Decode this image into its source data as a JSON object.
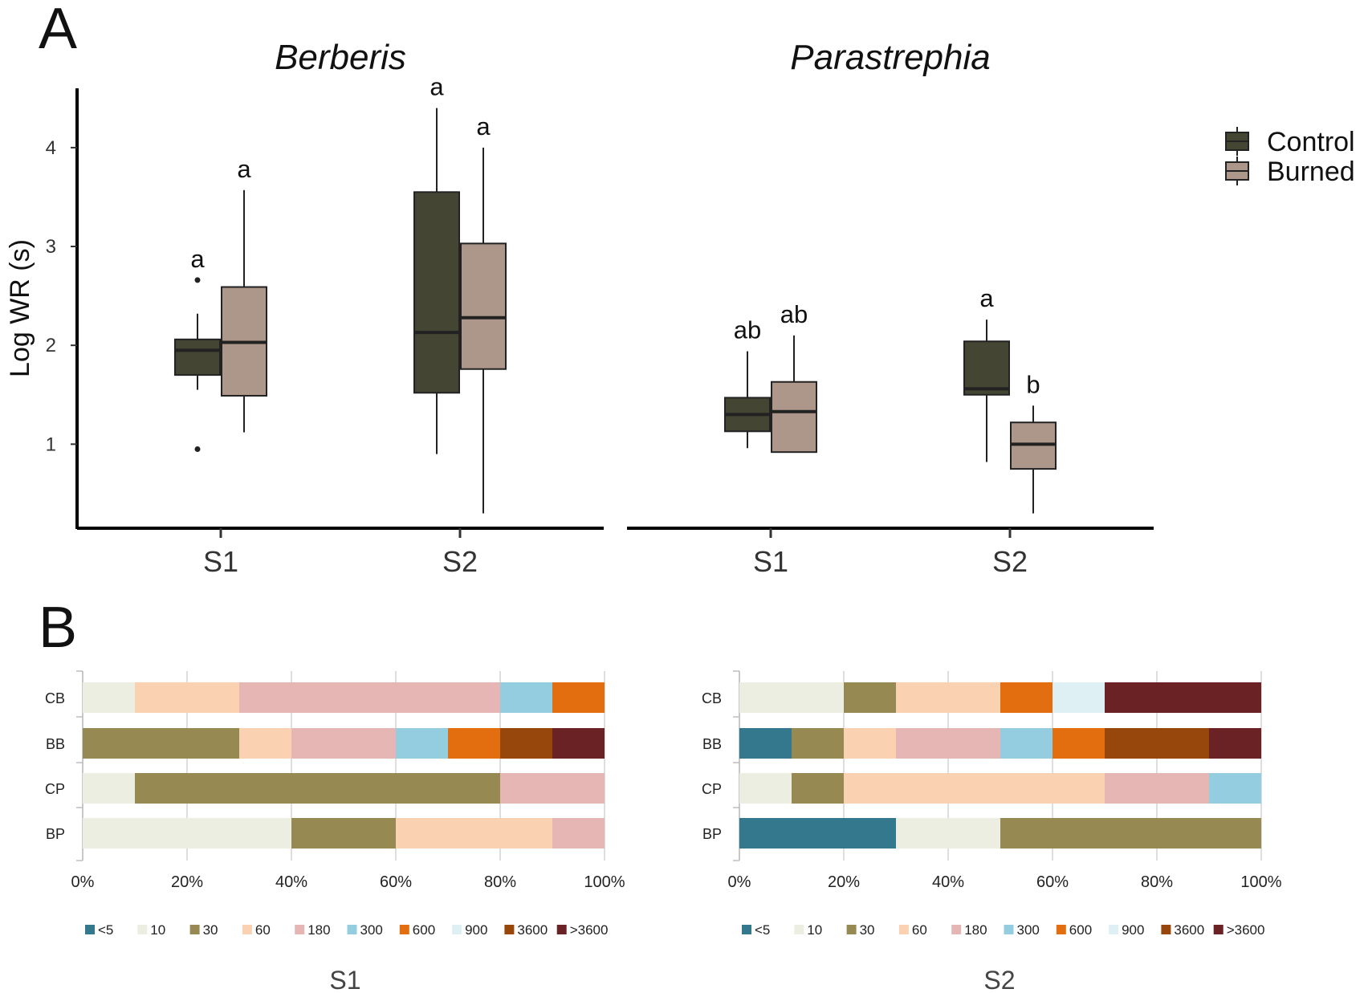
{
  "panel_labels": {
    "a": "A",
    "b": "B"
  },
  "colors": {
    "control": "#454534",
    "burned": "#ac978a",
    "bins": [
      "#33788d",
      "#ebeee0",
      "#968a52",
      "#fbd2b1",
      "#e6b6b5",
      "#94cddf",
      "#e36e10",
      "#dff0f4",
      "#98470c",
      "#6a2224"
    ]
  },
  "chart_data": [
    {
      "type": "boxplot",
      "facets": [
        "Berberis",
        "Parastrephia"
      ],
      "ylabel": "Log WR (s)",
      "yticks": [
        "1",
        "2",
        "3",
        "4"
      ],
      "ylim": [
        0.15,
        4.6
      ],
      "categories": [
        "S1",
        "S2"
      ],
      "legend": [
        "Control",
        "Burned"
      ],
      "boxes": [
        {
          "facet": 0,
          "cat": 0,
          "group": 0,
          "min": 1.55,
          "q1": 1.7,
          "med": 1.95,
          "q3": 2.06,
          "max": 2.32,
          "outliers": [
            2.66,
            0.95
          ],
          "sig": "a"
        },
        {
          "facet": 0,
          "cat": 0,
          "group": 1,
          "min": 1.12,
          "q1": 1.49,
          "med": 2.03,
          "q3": 2.59,
          "max": 3.57,
          "outliers": [],
          "sig": "a"
        },
        {
          "facet": 0,
          "cat": 1,
          "group": 0,
          "min": 0.9,
          "q1": 1.52,
          "med": 2.13,
          "q3": 3.55,
          "max": 4.4,
          "outliers": [],
          "sig": "a"
        },
        {
          "facet": 0,
          "cat": 1,
          "group": 1,
          "min": 0.3,
          "q1": 1.76,
          "med": 2.28,
          "q3": 3.03,
          "max": 4.0,
          "outliers": [],
          "sig": "a"
        },
        {
          "facet": 1,
          "cat": 0,
          "group": 0,
          "min": 0.96,
          "q1": 1.13,
          "med": 1.3,
          "q3": 1.47,
          "max": 1.94,
          "outliers": [],
          "sig": "ab"
        },
        {
          "facet": 1,
          "cat": 0,
          "group": 1,
          "min": 0.92,
          "q1": 0.92,
          "med": 1.33,
          "q3": 1.63,
          "max": 2.1,
          "outliers": [],
          "sig": "ab"
        },
        {
          "facet": 1,
          "cat": 1,
          "group": 0,
          "min": 0.82,
          "q1": 1.5,
          "med": 1.56,
          "q3": 2.04,
          "max": 2.26,
          "outliers": [],
          "sig": "a"
        },
        {
          "facet": 1,
          "cat": 1,
          "group": 1,
          "min": 0.3,
          "q1": 0.75,
          "med": 1.0,
          "q3": 1.22,
          "max": 1.39,
          "outliers": [],
          "sig": "b"
        }
      ]
    },
    {
      "type": "stacked-bar-100",
      "title": "S1",
      "categories": [
        "CB",
        "BB",
        "CP",
        "BP"
      ],
      "legend": [
        "<5",
        "10",
        "30",
        "60",
        "180",
        "300",
        "600",
        "900",
        "3600",
        ">3600"
      ],
      "xticks": [
        "0%",
        "20%",
        "40%",
        "60%",
        "80%",
        "100%"
      ],
      "percent": [
        [
          0,
          10,
          0,
          20,
          50,
          10,
          10,
          0,
          0,
          0
        ],
        [
          0,
          0,
          30,
          10,
          20,
          10,
          10,
          0,
          10,
          10
        ],
        [
          0,
          10,
          70,
          0,
          20,
          0,
          0,
          0,
          0,
          0
        ],
        [
          0,
          40,
          20,
          30,
          10,
          0,
          0,
          0,
          0,
          0
        ]
      ]
    },
    {
      "type": "stacked-bar-100",
      "title": "S2",
      "categories": [
        "CB",
        "BB",
        "CP",
        "BP"
      ],
      "legend": [
        "<5",
        "10",
        "30",
        "60",
        "180",
        "300",
        "600",
        "900",
        "3600",
        ">3600"
      ],
      "xticks": [
        "0%",
        "20%",
        "40%",
        "60%",
        "80%",
        "100%"
      ],
      "percent": [
        [
          0,
          20,
          10,
          20,
          0,
          0,
          10,
          10,
          0,
          30
        ],
        [
          10,
          0,
          10,
          10,
          20,
          10,
          10,
          0,
          20,
          10
        ],
        [
          0,
          10,
          10,
          50,
          20,
          10,
          0,
          0,
          0,
          0
        ],
        [
          30,
          20,
          50,
          0,
          0,
          0,
          0,
          0,
          0,
          0
        ]
      ]
    }
  ]
}
